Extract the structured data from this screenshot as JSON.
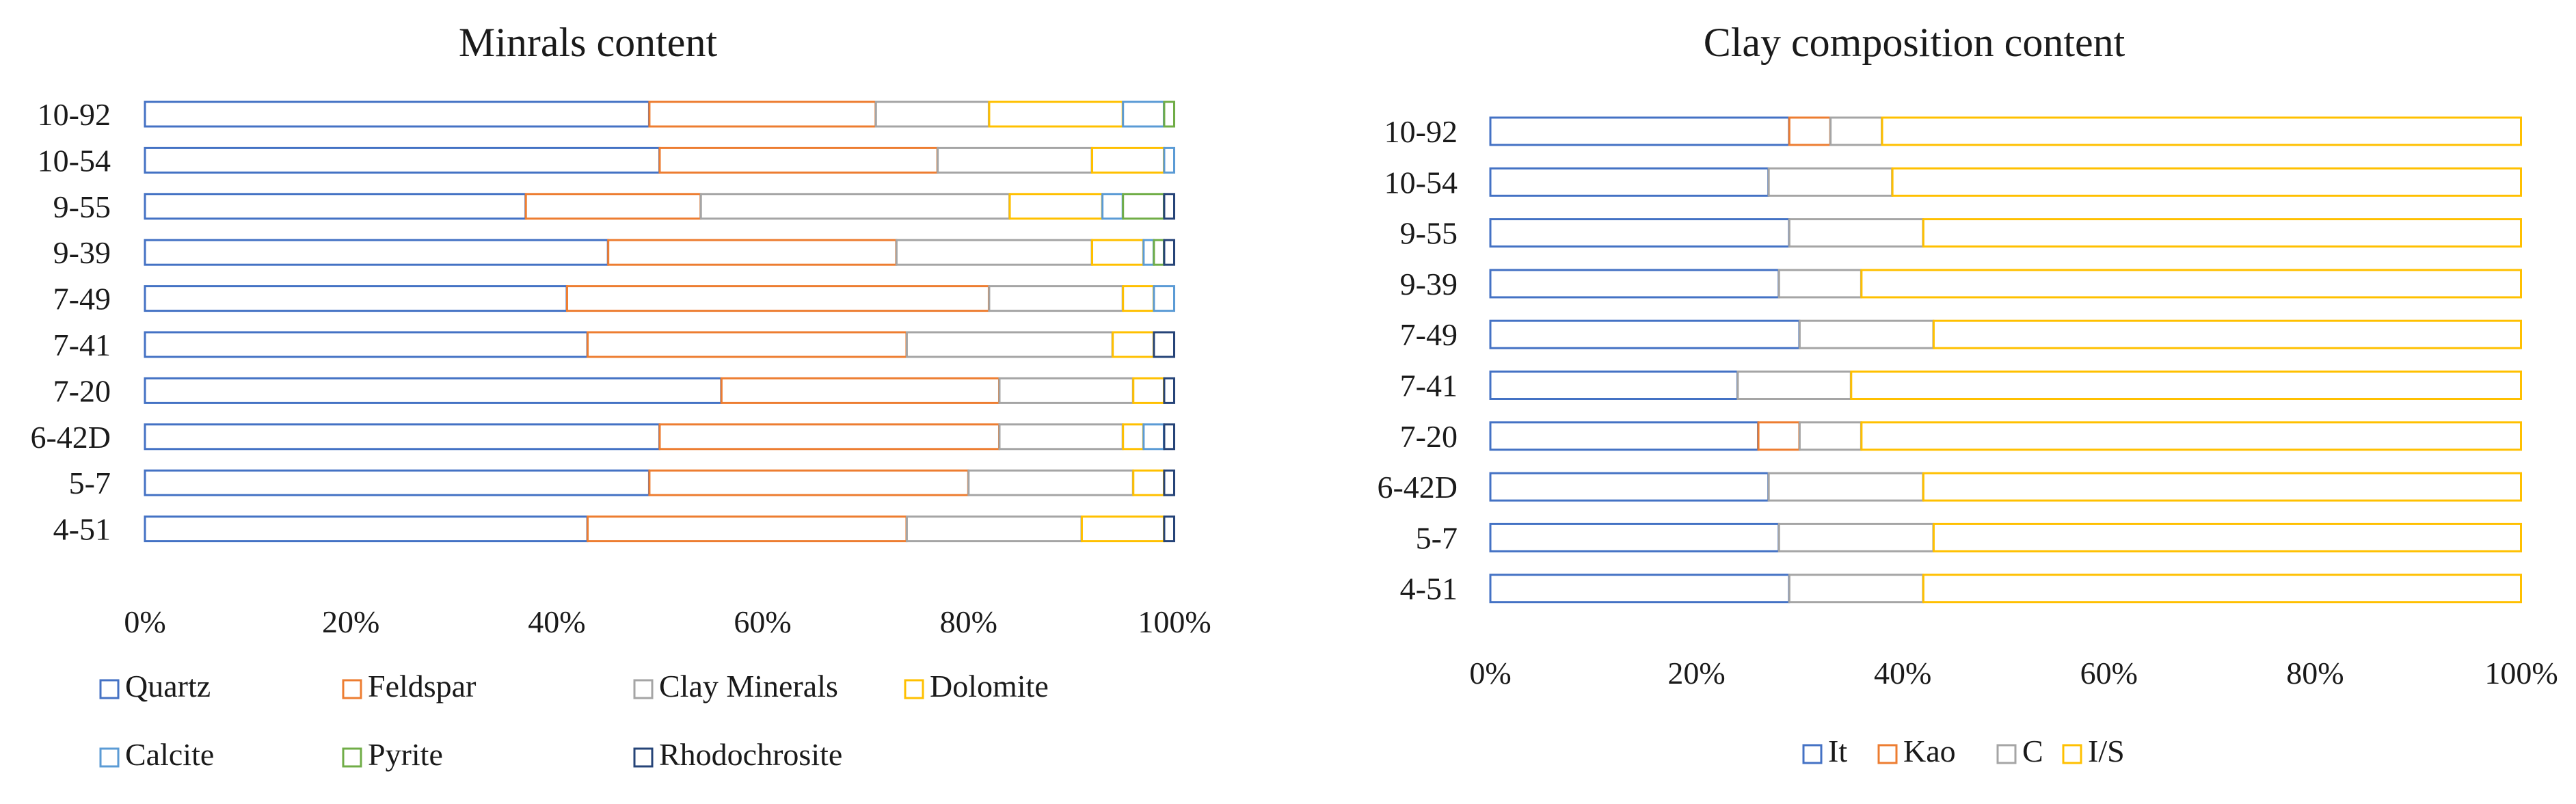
{
  "chart_data": [
    {
      "type": "bar",
      "orientation": "horizontal",
      "stacked": "percent",
      "title": "Minrals content",
      "categories": [
        "10-92",
        "10-54",
        "9-55",
        "9-39",
        "7-49",
        "7-41",
        "7-20",
        "6-42D",
        "5-7",
        "4-51"
      ],
      "series": [
        {
          "name": "Quartz",
          "color": "#4472c4",
          "values": [
            49,
            50,
            37,
            45,
            41,
            43,
            56,
            50,
            49,
            43
          ]
        },
        {
          "name": "Feldspar",
          "color": "#ed7d31",
          "values": [
            22,
            27,
            17,
            28,
            41,
            31,
            27,
            33,
            31,
            31
          ]
        },
        {
          "name": "Clay Minerals",
          "color": "#a5a5a5",
          "values": [
            11,
            15,
            30,
            19,
            13,
            20,
            13,
            12,
            16,
            17
          ]
        },
        {
          "name": "Dolomite",
          "color": "#ffc000",
          "values": [
            13,
            7,
            9,
            5,
            3,
            4,
            3,
            2,
            3,
            8
          ]
        },
        {
          "name": "Calcite",
          "color": "#5b9bd5",
          "values": [
            4,
            1,
            2,
            1,
            2,
            0,
            0,
            2,
            0,
            0
          ]
        },
        {
          "name": "Pyrite",
          "color": "#70ad47",
          "values": [
            1,
            0,
            4,
            1,
            0,
            0,
            0,
            0,
            0,
            0
          ]
        },
        {
          "name": "Rhodochrosite",
          "color": "#264478",
          "values": [
            0,
            0,
            1,
            1,
            0,
            2,
            1,
            1,
            1,
            1
          ]
        }
      ],
      "xlim": [
        0,
        100
      ],
      "ticks": [
        "0%",
        "20%",
        "40%",
        "60%",
        "80%",
        "100%"
      ],
      "legend": "bottom"
    },
    {
      "type": "bar",
      "orientation": "horizontal",
      "stacked": "percent",
      "title": "Clay composition content",
      "categories": [
        "10-92",
        "10-54",
        "9-55",
        "9-39",
        "7-49",
        "7-41",
        "7-20",
        "6-42D",
        "5-7",
        "4-51"
      ],
      "series": [
        {
          "name": "It",
          "color": "#4472c4",
          "values": [
            29,
            27,
            29,
            28,
            30,
            24,
            26,
            27,
            28,
            29
          ]
        },
        {
          "name": "Kao",
          "color": "#ed7d31",
          "values": [
            4,
            0,
            0,
            0,
            0,
            0,
            4,
            0,
            0,
            0
          ]
        },
        {
          "name": "C",
          "color": "#a5a5a5",
          "values": [
            5,
            12,
            13,
            8,
            13,
            11,
            6,
            15,
            15,
            13
          ]
        },
        {
          "name": "I/S",
          "color": "#ffc000",
          "values": [
            62,
            61,
            58,
            64,
            57,
            65,
            64,
            58,
            57,
            58
          ]
        }
      ],
      "xlim": [
        0,
        100
      ],
      "ticks": [
        "0%",
        "20%",
        "40%",
        "60%",
        "80%",
        "100%"
      ],
      "legend": "bottom"
    }
  ]
}
